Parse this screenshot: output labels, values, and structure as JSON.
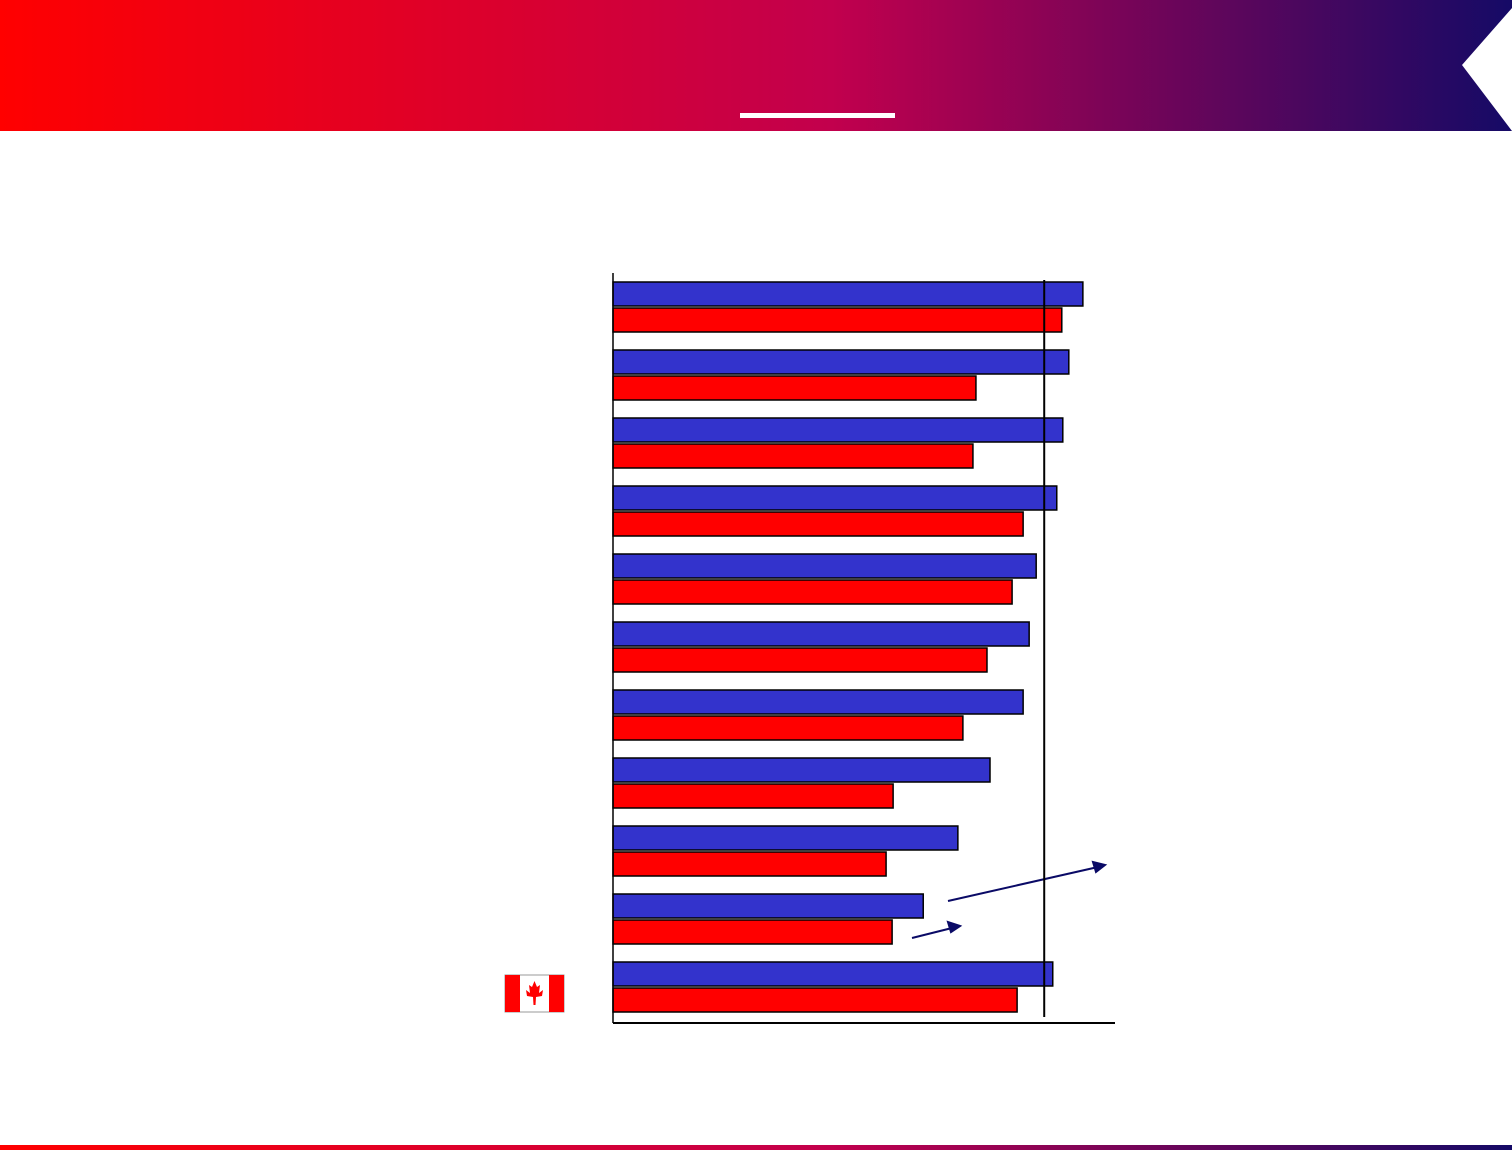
{
  "chart_data": {
    "type": "bar",
    "orientation": "horizontal",
    "categories": [
      null,
      null,
      null,
      null,
      null,
      null,
      null,
      null,
      null,
      null,
      null
    ],
    "series": [
      {
        "color": "#3333cc",
        "values": [
          93.6,
          90.8,
          89.6,
          88.4,
          84.3,
          82.9,
          81.7,
          75.1,
          68.7,
          61.8,
          87.6
        ]
      },
      {
        "color": "#ff0000",
        "values": [
          89.4,
          72.3,
          71.7,
          81.7,
          79.5,
          74.5,
          69.7,
          55.8,
          54.4,
          55.6,
          80.5
        ]
      }
    ],
    "xlim": [
      0,
      100
    ],
    "reference_line": 85.9
  }
}
